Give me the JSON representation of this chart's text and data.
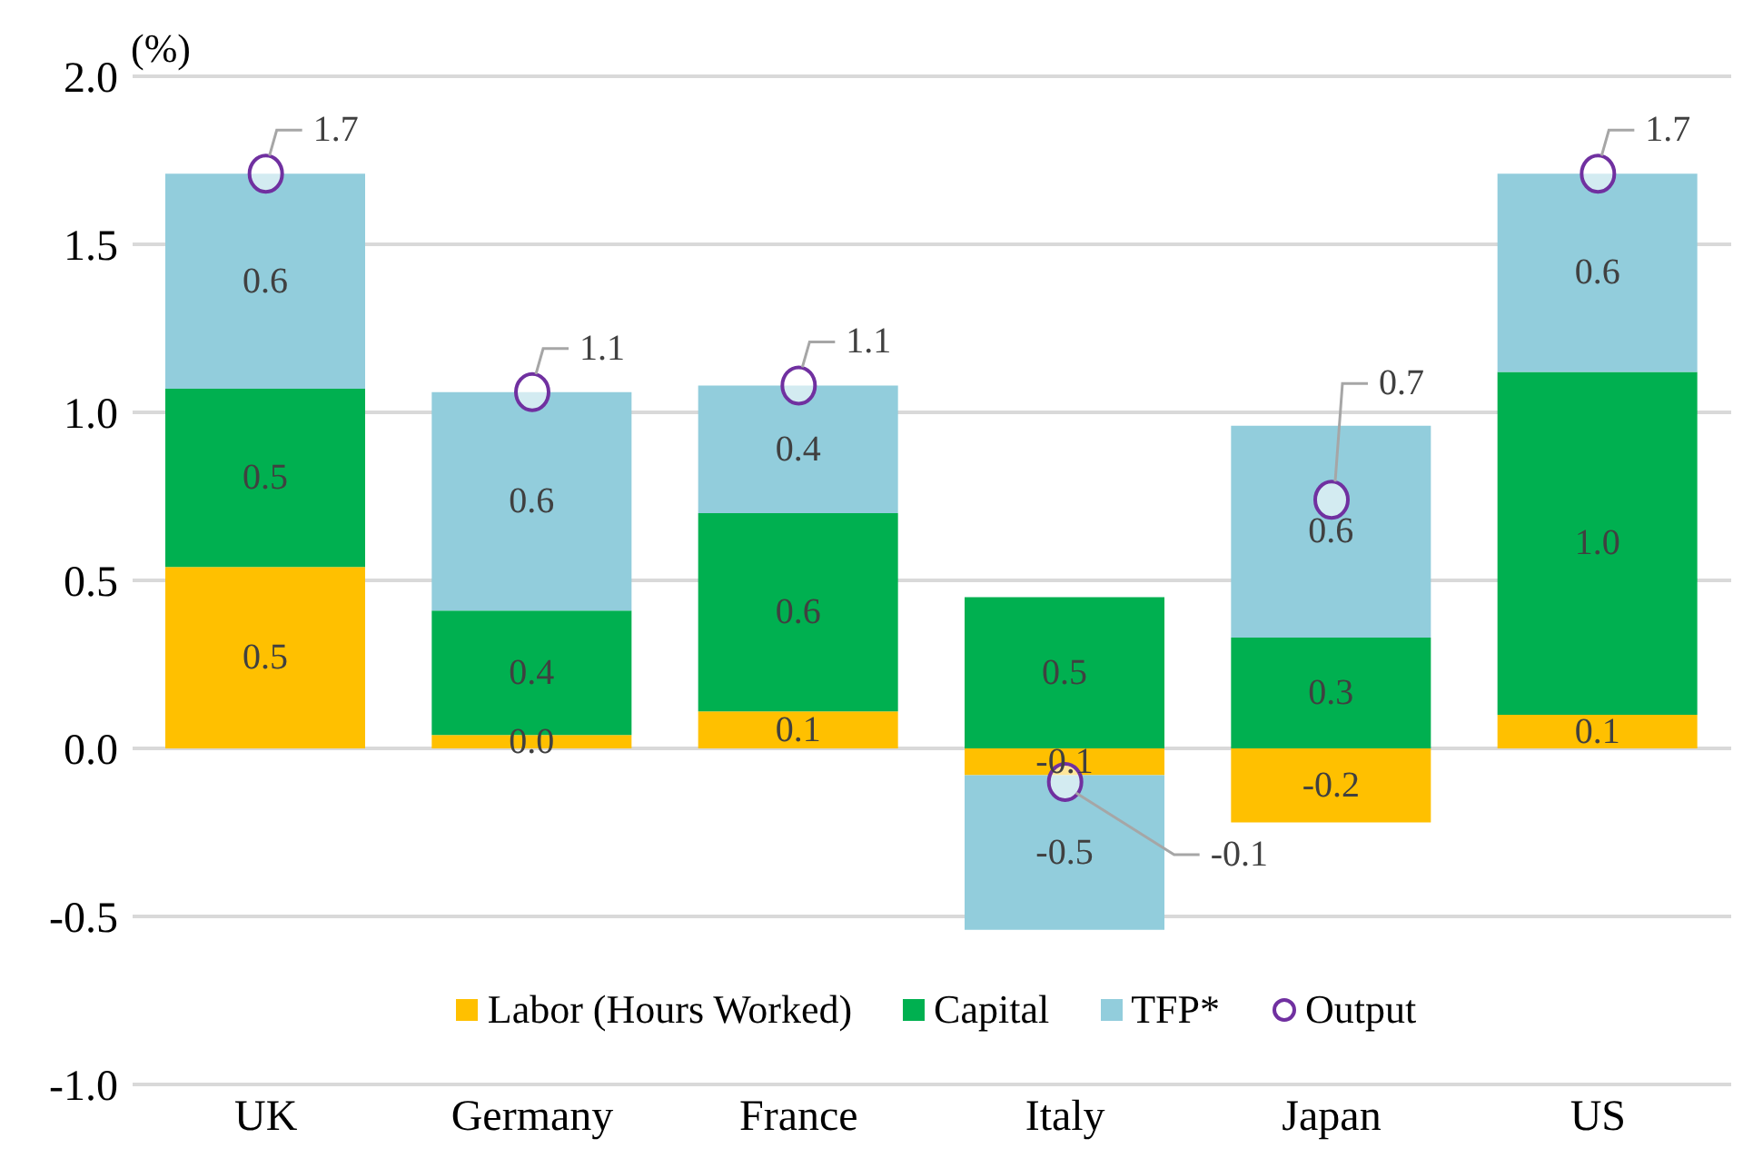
{
  "chart_data": {
    "type": "bar",
    "ylabel": "(%)",
    "categories": [
      "UK",
      "Germany",
      "France",
      "Italy",
      "Japan",
      "US"
    ],
    "stacked": true,
    "series": [
      {
        "name": "Labor (Hours Worked)",
        "color": "#ffc000",
        "values": [
          0.54,
          0.04,
          0.11,
          -0.08,
          -0.22,
          0.1
        ],
        "value_labels": [
          "0.5",
          "0.0",
          "0.1",
          "-0.1",
          "-0.2",
          "0.1"
        ]
      },
      {
        "name": "Capital",
        "color": "#00b050",
        "values": [
          0.53,
          0.37,
          0.59,
          0.45,
          0.33,
          1.02
        ],
        "value_labels": [
          "0.5",
          "0.4",
          "0.6",
          "0.5",
          "0.3",
          "1.0"
        ]
      },
      {
        "name": "TFP*",
        "color": "#92cddc",
        "values": [
          0.64,
          0.65,
          0.38,
          -0.46,
          0.63,
          0.59
        ],
        "value_labels": [
          "0.6",
          "0.6",
          "0.4",
          "-0.5",
          "0.6",
          "0.6"
        ]
      },
      {
        "name": "Output",
        "type": "scatter",
        "marker": "circle",
        "color": "#7030a0",
        "values": [
          1.71,
          1.06,
          1.08,
          -0.1,
          0.74,
          1.71
        ],
        "value_labels": [
          "1.7",
          "1.1",
          "1.1",
          "-0.1",
          "0.7",
          "1.7"
        ]
      }
    ],
    "ylim": [
      -1.0,
      2.0
    ],
    "yticks": [
      {
        "value": -1.0,
        "label": "-1.0"
      },
      {
        "value": -0.5,
        "label": "-0.5"
      },
      {
        "value": 0.0,
        "label": "0.0"
      },
      {
        "value": 0.5,
        "label": "0.5"
      },
      {
        "value": 1.0,
        "label": "1.0"
      },
      {
        "value": 1.5,
        "label": "1.5"
      },
      {
        "value": 2.0,
        "label": "2.0"
      }
    ],
    "grid": "y",
    "legend": "bottom"
  }
}
